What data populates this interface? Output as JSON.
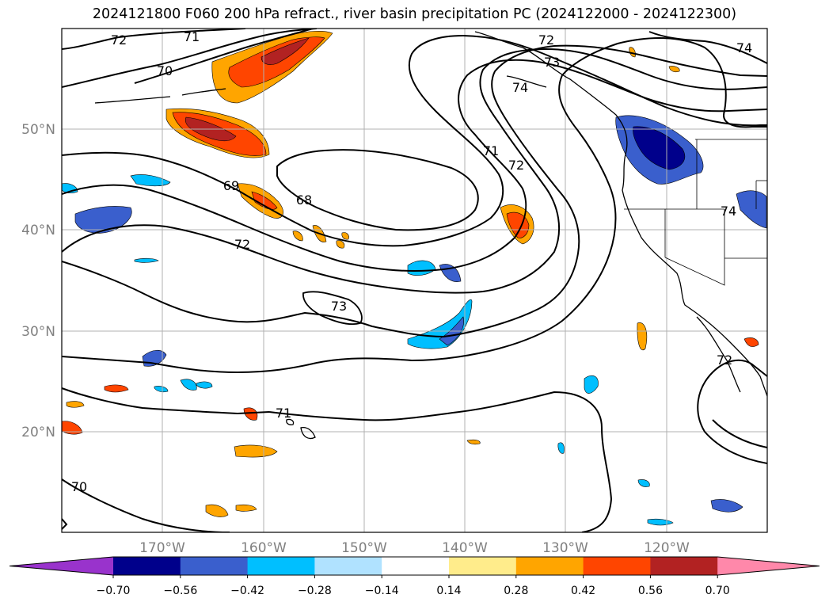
{
  "title": "2024121800 F060 200 hPa refract., river basin precipitation PC (2024122000 - 2024122300)",
  "map": {
    "lat_labels": [
      "50°N",
      "40°N",
      "30°N",
      "20°N"
    ],
    "lon_labels": [
      "170°W",
      "160°W",
      "150°W",
      "140°W",
      "130°W",
      "120°W"
    ],
    "contour_labels": [
      "72",
      "71",
      "70",
      "69",
      "68",
      "72",
      "73",
      "71",
      "70",
      "72",
      "71",
      "72",
      "73",
      "74",
      "74",
      "72",
      "74"
    ],
    "gridline_color": "#b0b0b0",
    "contour_color": "#000000"
  },
  "colorbar": {
    "ticks": [
      "−0.70",
      "−0.56",
      "−0.42",
      "−0.28",
      "−0.14",
      "0.14",
      "0.28",
      "0.42",
      "0.56",
      "0.70"
    ],
    "colors": [
      "#9933cc",
      "#00008b",
      "#3a5fcd",
      "#00bfff",
      "#b0e2ff",
      "#ffffff",
      "#ffec8b",
      "#ffa500",
      "#ff4500",
      "#b22222",
      "#ff88aa"
    ]
  }
}
